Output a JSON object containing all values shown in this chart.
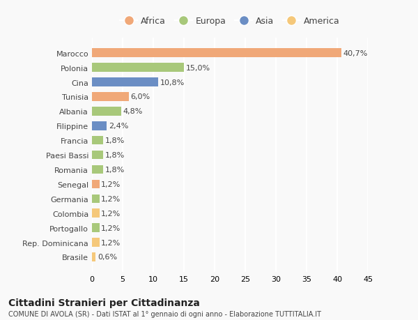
{
  "categories": [
    "Brasile",
    "Rep. Dominicana",
    "Portogallo",
    "Colombia",
    "Germania",
    "Senegal",
    "Romania",
    "Paesi Bassi",
    "Francia",
    "Filippine",
    "Albania",
    "Tunisia",
    "Cina",
    "Polonia",
    "Marocco"
  ],
  "values": [
    0.6,
    1.2,
    1.2,
    1.2,
    1.2,
    1.2,
    1.8,
    1.8,
    1.8,
    2.4,
    4.8,
    6.0,
    10.8,
    15.0,
    40.7
  ],
  "bar_color_map": {
    "Marocco": "#f0a878",
    "Polonia": "#a8c87a",
    "Cina": "#6b8ec4",
    "Tunisia": "#f0a878",
    "Albania": "#a8c87a",
    "Filippine": "#6b8ec4",
    "Francia": "#a8c87a",
    "Paesi Bassi": "#a8c87a",
    "Romania": "#a8c87a",
    "Senegal": "#f0a878",
    "Germania": "#a8c87a",
    "Colombia": "#f5c87a",
    "Portogallo": "#a8c87a",
    "Rep. Dominicana": "#f5c87a",
    "Brasile": "#f5c87a"
  },
  "labels": [
    "0,6%",
    "1,2%",
    "1,2%",
    "1,2%",
    "1,2%",
    "1,2%",
    "1,8%",
    "1,8%",
    "1,8%",
    "2,4%",
    "4,8%",
    "6,0%",
    "10,8%",
    "15,0%",
    "40,7%"
  ],
  "xlim": [
    0,
    45
  ],
  "xticks": [
    0,
    5,
    10,
    15,
    20,
    25,
    30,
    35,
    40,
    45
  ],
  "title": "Cittadini Stranieri per Cittadinanza",
  "subtitle": "COMUNE DI AVOLA (SR) - Dati ISTAT al 1° gennaio di ogni anno - Elaborazione TUTTITALIA.IT",
  "legend": [
    {
      "label": "Africa",
      "color": "#f0a878"
    },
    {
      "label": "Europa",
      "color": "#a8c87a"
    },
    {
      "label": "Asia",
      "color": "#6b8ec4"
    },
    {
      "label": "America",
      "color": "#f5c87a"
    }
  ],
  "background_color": "#f9f9f9",
  "grid_color": "#ffffff",
  "bar_height": 0.6
}
